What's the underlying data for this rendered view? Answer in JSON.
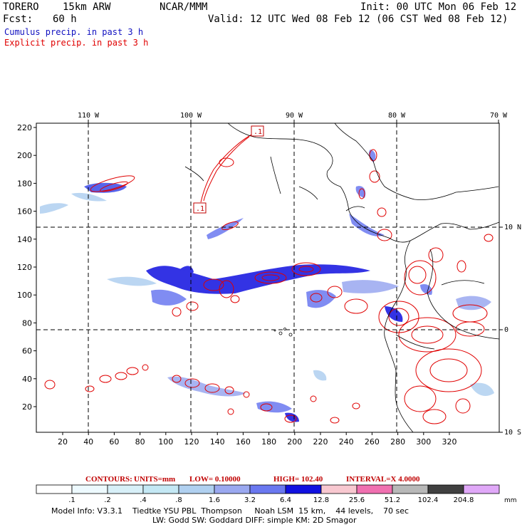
{
  "header": {
    "model": "TORERO",
    "resolution": "15km ARW",
    "org": "NCAR/MMM",
    "init": "Init: 00 UTC Mon 06 Feb 12",
    "fcst_label": "Fcst:",
    "fcst_value": "60 h",
    "valid": "Valid: 12 UTC Wed 08 Feb 12 (06 CST Wed 08 Feb 12)",
    "cumulus_label": "Cumulus precip. in past 3 h",
    "explicit_label": "Explicit precip. in past 3 h",
    "cumulus_color": "#1010c0",
    "explicit_color": "#e00000"
  },
  "map": {
    "top_lon_labels": [
      "110 W",
      "100 W",
      "90 W",
      "80 W",
      "70 W"
    ],
    "right_lat_labels": [
      "10 N",
      "0",
      "10 S"
    ],
    "y_ticks": [
      "20",
      "40",
      "60",
      "80",
      "100",
      "120",
      "140",
      "160",
      "180",
      "200",
      "220"
    ],
    "x_ticks": [
      "20",
      "40",
      "60",
      "80",
      "100",
      "120",
      "140",
      "160",
      "180",
      "200",
      "220",
      "240",
      "260",
      "280",
      "300",
      "320"
    ],
    "contour_boxes": [
      ".1",
      ".1"
    ]
  },
  "contour_info": {
    "contours": "CONTOURS:",
    "units": "UNITS=mm",
    "low": "LOW= 0.10000",
    "high": "HIGH= 102.40",
    "interval": "INTERVAL=X 4.0000"
  },
  "colorbar": {
    "labels": [
      ".1",
      ".2",
      ".4",
      ".8",
      "1.6",
      "3.2",
      "6.4",
      "12.8",
      "25.6",
      "51.2",
      "102.4",
      "204.8"
    ],
    "unit": "mm",
    "colors": [
      "#ffffff",
      "#eefaff",
      "#d8f0f8",
      "#c4e8f4",
      "#b0d0f0",
      "#9aa8f0",
      "#6a78f0",
      "#1010e0",
      "#f8c8d0",
      "#f070b0",
      "#b8b8b8",
      "#404040",
      "#e0a8f8"
    ]
  },
  "footer": {
    "line1": "Model Info: V3.3.1    Tiedtke YSU PBL  Thompson     Noah LSM  15 km,    44 levels,    70 sec",
    "line2": "LW: Godd SW: Goddard DIFF: simple KM: 2D Smagor"
  }
}
